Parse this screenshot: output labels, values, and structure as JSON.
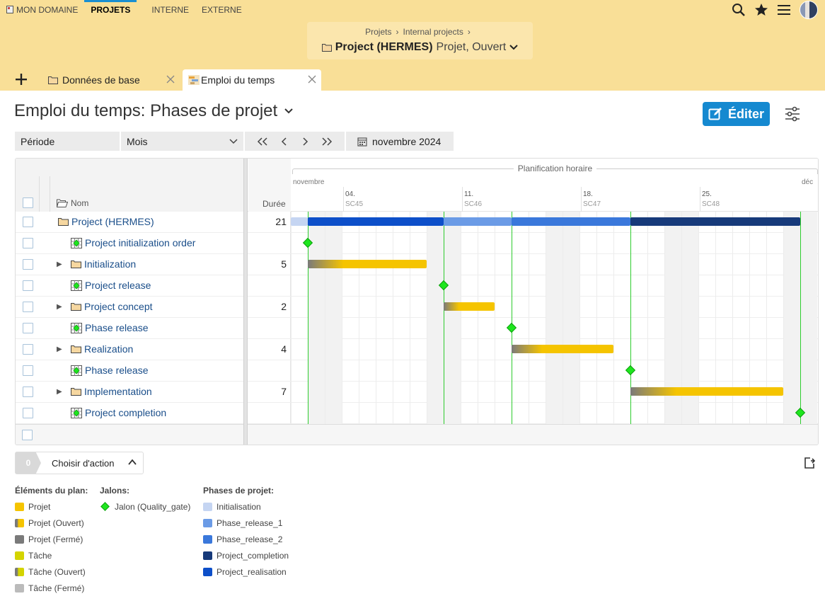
{
  "topnav": {
    "items": [
      "MON DOMAINE",
      "PROJETS",
      "INTERNE",
      "EXTERNE"
    ],
    "active": "PROJETS"
  },
  "breadcrumb": {
    "items": [
      "Projets",
      "Internal projects"
    ],
    "project_name": "Project (HERMES)",
    "project_status": "Projet, Ouvert"
  },
  "tabs": [
    {
      "label": "Données de base",
      "icon": "folder-icon"
    },
    {
      "label": "Emploi du temps",
      "icon": "gantt-icon",
      "active": true
    }
  ],
  "page": {
    "title": "Emploi du temps: Phases de projet",
    "edit_label": "Éditer"
  },
  "filter": {
    "period_label": "Période",
    "period_value": "Mois",
    "date_value": "novembre 2024"
  },
  "gantt": {
    "header": {
      "name_col": "Nom",
      "duration_col": "Durée",
      "timeline_label": "Planification horaire",
      "month_start": "novembre",
      "month_end": "déc",
      "weeks": [
        {
          "date": "04.",
          "sc": "SC45"
        },
        {
          "date": "11.",
          "sc": "SC46"
        },
        {
          "date": "18.",
          "sc": "SC47"
        },
        {
          "date": "25.",
          "sc": "SC48"
        }
      ]
    },
    "rows": [
      {
        "name": "Project (HERMES)",
        "type": "project",
        "duration": "21",
        "level": 0,
        "expandable": false
      },
      {
        "name": "Project initialization order",
        "type": "milestone",
        "duration": "",
        "level": 1,
        "expandable": false
      },
      {
        "name": "Initialization",
        "type": "phase",
        "duration": "5",
        "level": 1,
        "expandable": true
      },
      {
        "name": "Project release",
        "type": "milestone",
        "duration": "",
        "level": 1,
        "expandable": false
      },
      {
        "name": "Project concept",
        "type": "phase",
        "duration": "2",
        "level": 1,
        "expandable": true
      },
      {
        "name": "Phase release",
        "type": "milestone",
        "duration": "",
        "level": 1,
        "expandable": false
      },
      {
        "name": "Realization",
        "type": "phase",
        "duration": "4",
        "level": 1,
        "expandable": true
      },
      {
        "name": "Phase release",
        "type": "milestone",
        "duration": "",
        "level": 1,
        "expandable": false
      },
      {
        "name": "Implementation",
        "type": "phase",
        "duration": "7",
        "level": 1,
        "expandable": true
      },
      {
        "name": "Project completion",
        "type": "milestone",
        "duration": "",
        "level": 1,
        "expandable": false
      }
    ]
  },
  "actions": {
    "count": "0",
    "label": "Choisir d'action"
  },
  "legend": {
    "plan": {
      "title": "Éléments du plan:",
      "items": [
        {
          "label": "Projet",
          "color": "#f5c400"
        },
        {
          "label": "Projet (Ouvert)",
          "color": "#f5c400",
          "grad": true
        },
        {
          "label": "Projet (Fermé)",
          "color": "#7a7a7a"
        },
        {
          "label": "Tâche",
          "color": "#d4d400"
        },
        {
          "label": "Tâche (Ouvert)",
          "color": "#d4d400",
          "grad": true
        },
        {
          "label": "Tâche (Fermé)",
          "color": "#bbbbbb"
        }
      ]
    },
    "jalons": {
      "title": "Jalons:",
      "items": [
        {
          "label": "Jalon (Quality_gate)",
          "color": "#1ee61e"
        }
      ]
    },
    "phases": {
      "title": "Phases de projet:",
      "items": [
        {
          "label": "Initialisation",
          "color": "#c5d5f2"
        },
        {
          "label": "Phase_release_1",
          "color": "#6b9be6"
        },
        {
          "label": "Phase_release_2",
          "color": "#3a78db"
        },
        {
          "label": "Project_completion",
          "color": "#173a7a"
        },
        {
          "label": "Project_realisation",
          "color": "#0d4fc9"
        }
      ]
    }
  },
  "colors": {
    "header_bg": "#f9df97",
    "accent": "#1589d0",
    "milestone": "#1ee61e",
    "bar_open_start": "#7a7a7a",
    "bar_open_end": "#f5c400"
  }
}
